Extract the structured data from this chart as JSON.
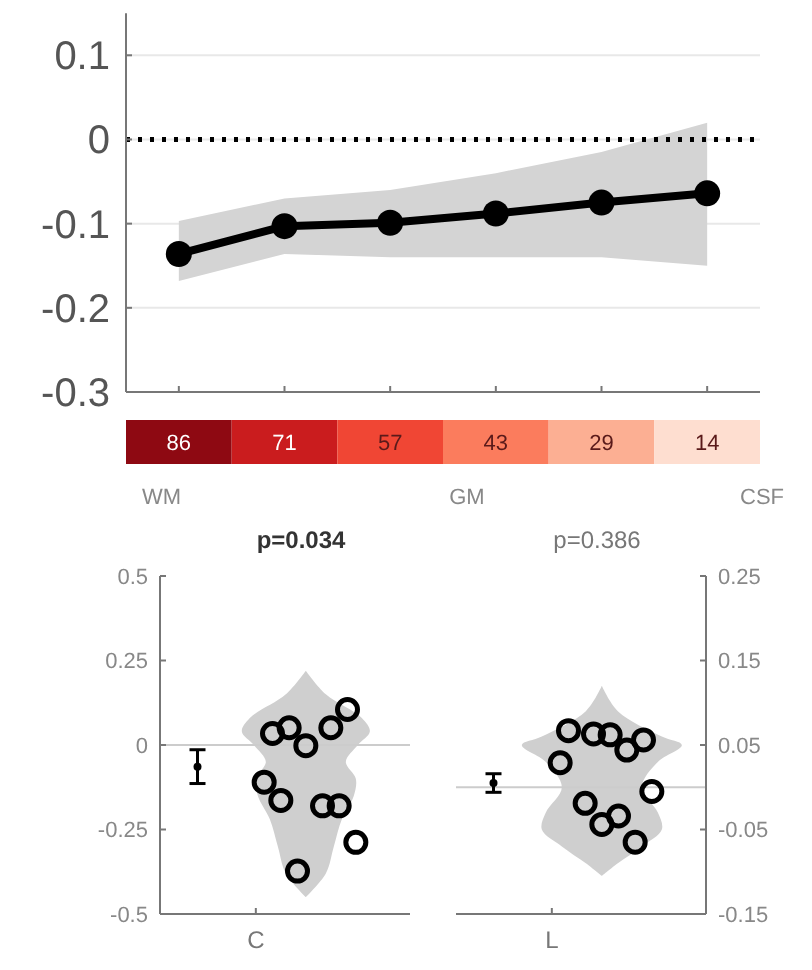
{
  "chart_data": [
    {
      "type": "line",
      "categories": [
        null,
        null,
        null,
        null,
        null,
        null
      ],
      "series": [
        {
          "color": "#000000",
          "values": [
            -0.136,
            -0.103,
            -0.099,
            -0.088,
            -0.075,
            -0.064
          ],
          "lower": [
            -0.168,
            -0.136,
            -0.14,
            -0.14,
            -0.14,
            -0.15
          ],
          "upper": [
            -0.097,
            -0.07,
            -0.06,
            -0.04,
            -0.015,
            0.02
          ]
        }
      ],
      "ylim": [
        -0.3,
        0.15
      ],
      "yticks": [
        -0.3,
        -0.2,
        -0.1,
        0,
        0.1
      ],
      "grid": "y",
      "marker": "circle",
      "ref_lines": [
        {
          "axis": "y",
          "value": 0,
          "color": "#000000",
          "line_style": "dotted"
        }
      ]
    },
    {
      "type": "heatmap",
      "categories": [
        null,
        null,
        null,
        null,
        null,
        null
      ],
      "y_categories": [
        null
      ],
      "cells": [
        [
          86,
          71,
          57,
          43,
          29,
          14
        ]
      ],
      "data_labels": true,
      "annotations": [
        "WM",
        "GM",
        "CSF"
      ]
    },
    {
      "type": "scatter",
      "title": "p=0.034",
      "categories": [
        null,
        null,
        null,
        null,
        null,
        null,
        null,
        null,
        null,
        null,
        null,
        "C",
        null,
        null,
        null,
        null,
        null,
        null,
        null,
        null,
        null,
        null,
        null,
        null,
        null,
        null,
        null,
        null,
        null,
        null
      ],
      "ylim": [
        -0.5,
        0.5
      ],
      "yticks": [
        -0.5,
        -0.25,
        0,
        0.25,
        0.5
      ],
      "marker": "circle",
      "series": [
        {
          "color": "#000000",
          "values": [
            null,
            null,
            null,
            null,
            null,
            null,
            null,
            null,
            null,
            null,
            null,
            null,
            -0.11,
            0.034,
            -0.164,
            0.051,
            -0.373,
            -0.002,
            null,
            -0.18,
            0.051,
            -0.18,
            0.105,
            -0.288,
            null,
            null,
            null,
            null,
            null,
            null
          ]
        },
        {
          "color": "#000000",
          "values": [
            null,
            null,
            null,
            null,
            -0.064,
            null,
            null,
            null,
            null,
            null,
            null,
            null,
            null,
            null,
            null,
            null,
            null,
            null,
            null,
            null,
            null,
            null,
            null,
            null,
            null,
            null,
            null,
            null,
            null,
            null
          ],
          "errors": [
            null,
            null,
            null,
            null,
            0.05,
            null,
            null,
            null,
            null,
            null,
            null,
            null,
            null,
            null,
            null,
            null,
            null,
            null,
            null,
            null,
            null,
            null,
            null,
            null,
            null,
            null,
            null,
            null,
            null,
            null
          ]
        }
      ],
      "ref_lines": [
        {
          "axis": "y",
          "value": 0,
          "color": "#cccccc"
        }
      ]
    },
    {
      "type": "scatter",
      "title": "p=0.386",
      "categories": [
        null,
        null,
        null,
        null,
        null,
        null,
        null,
        null,
        null,
        null,
        null,
        "L",
        null,
        null,
        null,
        null,
        null,
        null,
        null,
        null,
        null,
        null,
        null,
        null,
        null,
        null,
        null,
        null,
        null,
        null
      ],
      "y2lim": [
        -0.15,
        0.25
      ],
      "y2ticks": [
        -0.15,
        -0.05,
        0.05,
        0.15,
        0.25
      ],
      "marker": "circle",
      "series": [
        {
          "color": "#000000",
          "axis": "y2",
          "values": [
            null,
            null,
            null,
            null,
            null,
            null,
            null,
            null,
            null,
            null,
            null,
            null,
            0.029,
            0.067,
            null,
            -0.019,
            0.063,
            -0.044,
            0.062,
            -0.034,
            0.044,
            -0.065,
            0.056,
            -0.005,
            null,
            null,
            null,
            null,
            null,
            null
          ]
        },
        {
          "color": "#000000",
          "axis": "y2",
          "values": [
            null,
            null,
            null,
            null,
            0.005,
            null,
            null,
            null,
            null,
            null,
            null,
            null,
            null,
            null,
            null,
            null,
            null,
            null,
            null,
            null,
            null,
            null,
            null,
            null,
            null,
            null,
            null,
            null,
            null,
            null
          ],
          "errors": [
            null,
            null,
            null,
            null,
            0.011,
            null,
            null,
            null,
            null,
            null,
            null,
            null,
            null,
            null,
            null,
            null,
            null,
            null,
            null,
            null,
            null,
            null,
            null,
            null,
            null,
            null,
            null,
            null,
            null,
            null
          ]
        }
      ],
      "ref_lines": [
        {
          "axis": "y2",
          "value": 0,
          "color": "#cccccc"
        }
      ]
    }
  ]
}
